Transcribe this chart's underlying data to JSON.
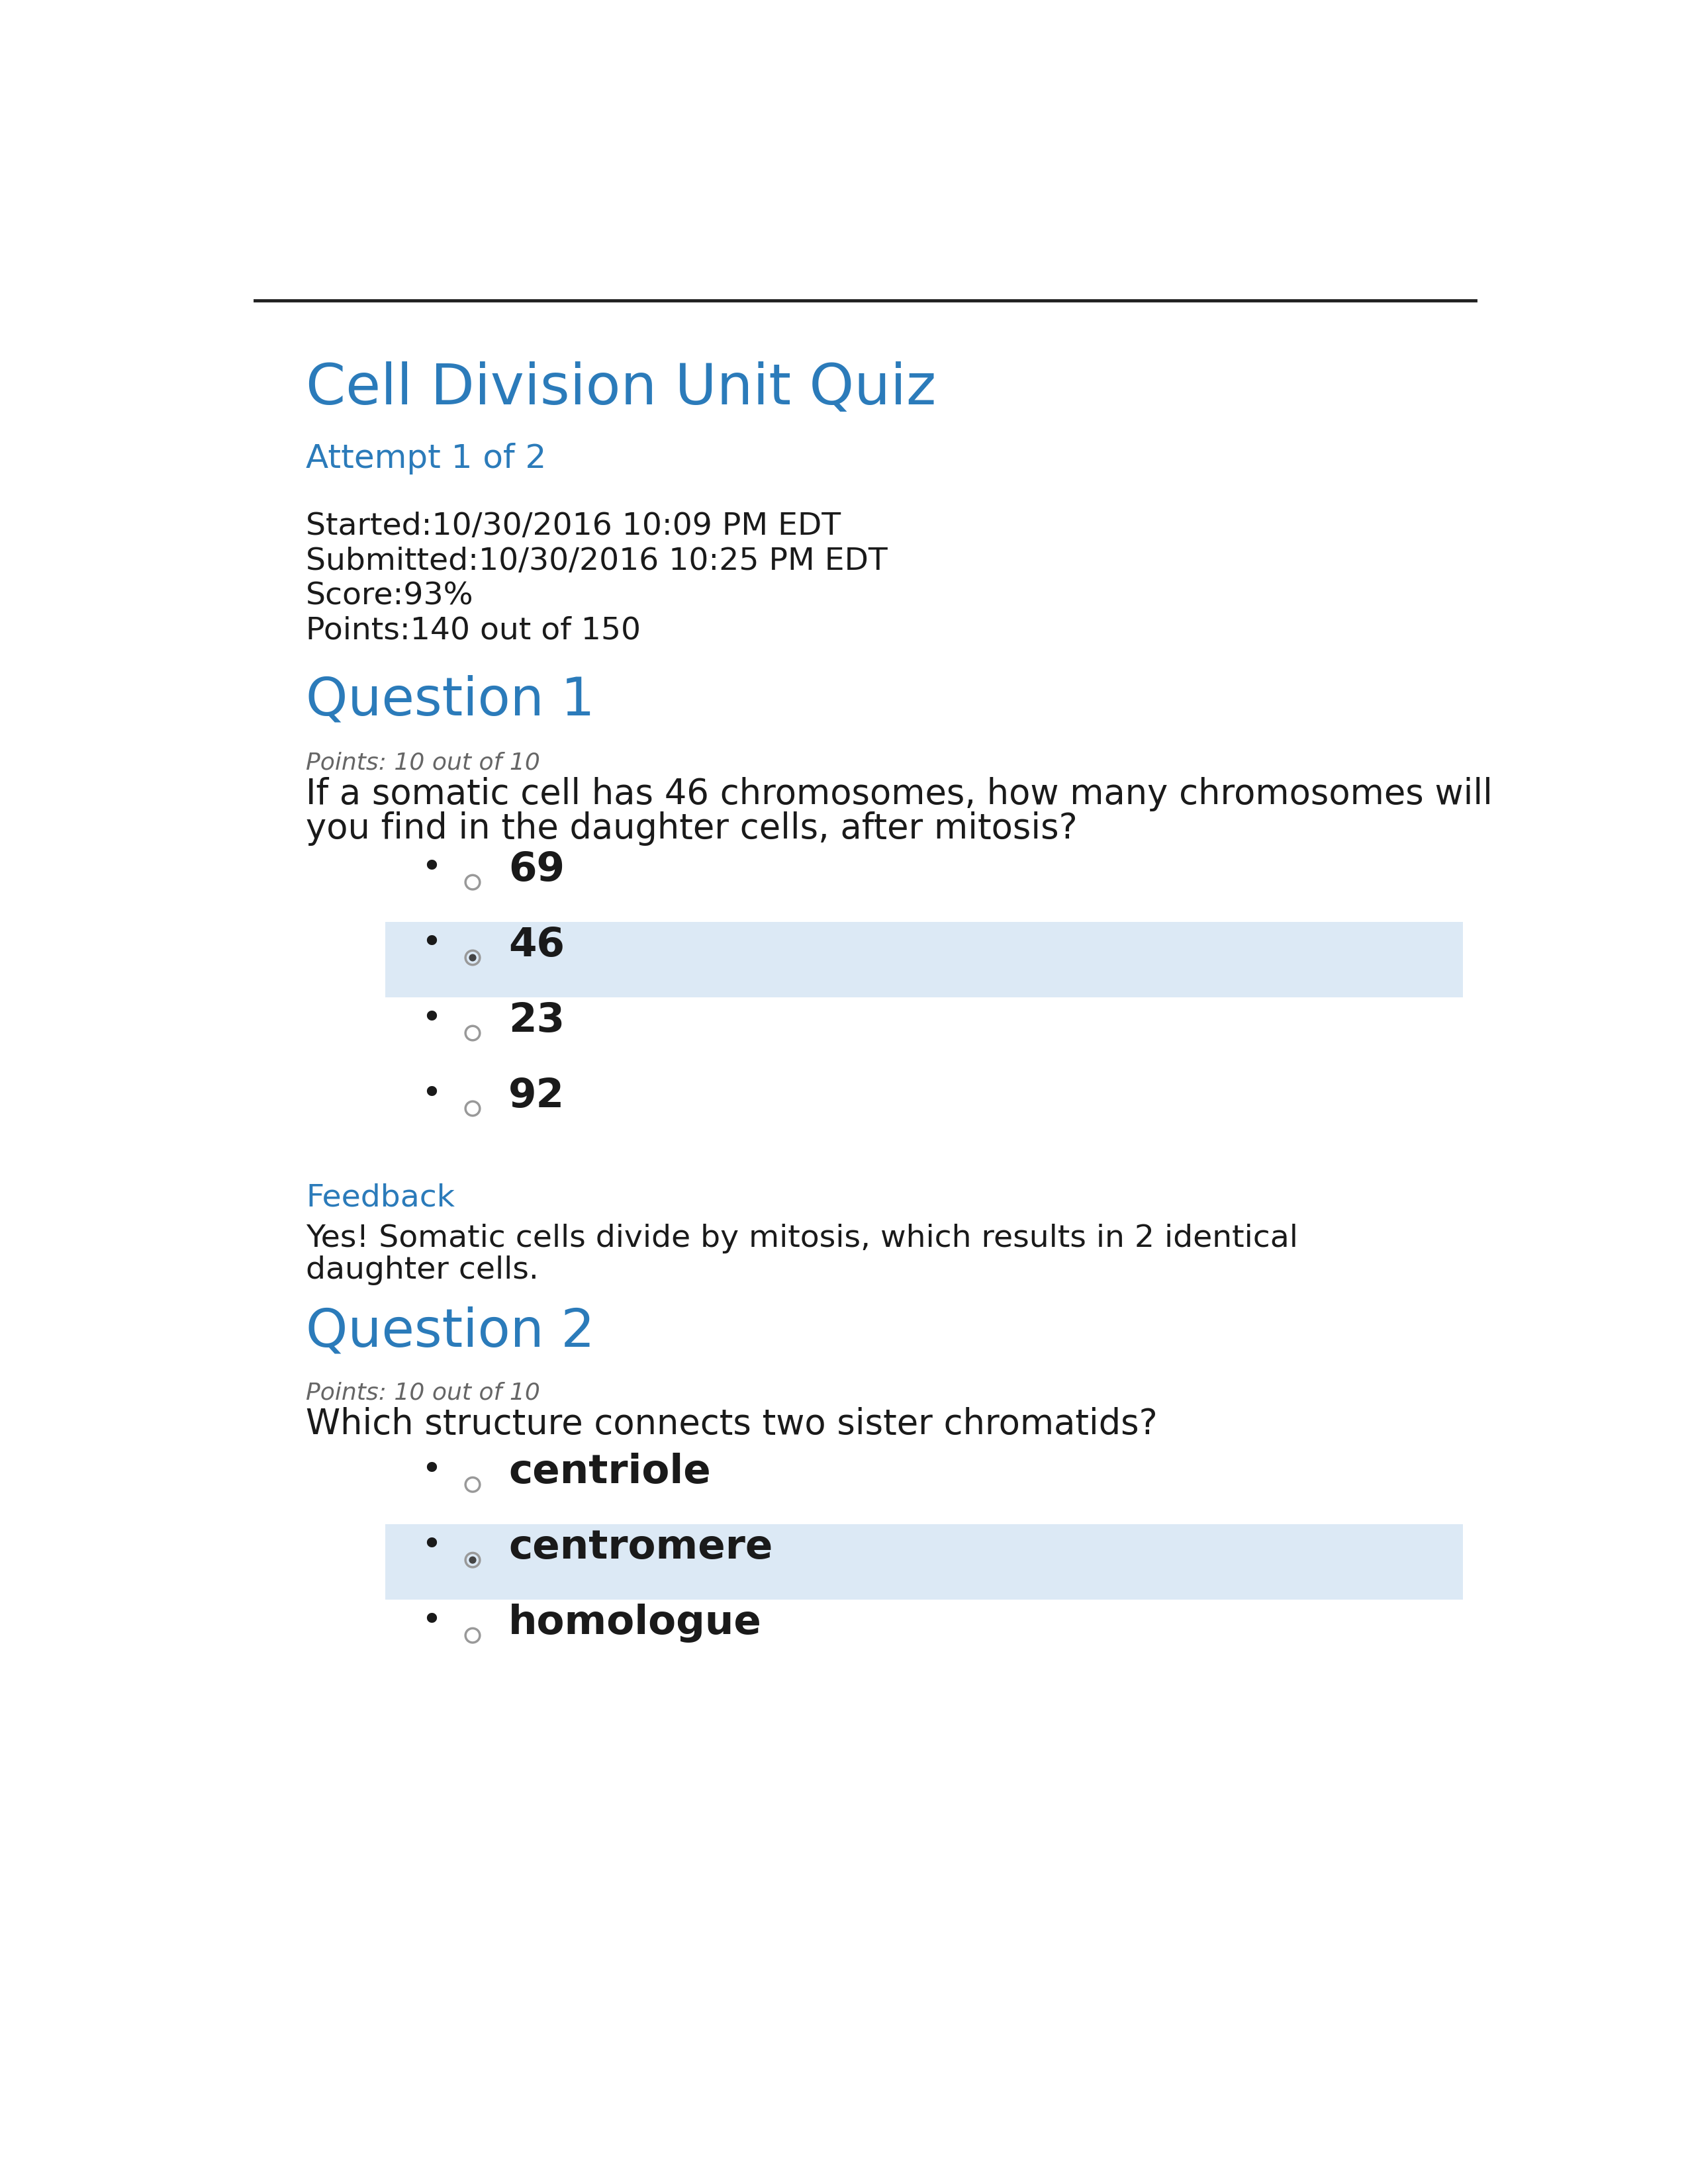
{
  "title": "Cell Division Unit Quiz",
  "attempt": "Attempt 1 of 2",
  "started": "Started:10/30/2016 10:09 PM EDT",
  "submitted": "Submitted:10/30/2016 10:25 PM EDT",
  "score": "Score:93%",
  "points_total": "Points:140 out of 150",
  "blue_color": "#2b7bba",
  "black_color": "#1a1a1a",
  "highlight_color": "#dce9f5",
  "q1_header": "Question 1",
  "q1_points": "Points: 10 out of 10",
  "q1_question_line1": "If a somatic cell has 46 chromosomes, how many chromosomes will",
  "q1_question_line2": "you find in the daughter cells, after mitosis?",
  "q1_options": [
    "69",
    "46",
    "23",
    "92"
  ],
  "q1_correct": 1,
  "feedback_label": "Feedback",
  "feedback_text_line1": "Yes! Somatic cells divide by mitosis, which results in 2 identical",
  "feedback_text_line2": "daughter cells.",
  "q2_header": "Question 2",
  "q2_points": "Points: 10 out of 10",
  "q2_question": "Which structure connects two sister chromatids?",
  "q2_options": [
    "centriole",
    "centromere",
    "homologue"
  ],
  "q2_correct": 1,
  "bg_color": "#ffffff",
  "radio_unsel_color": "#999999",
  "radio_sel_color": "#444444",
  "meta_text_color": "#1a1a1a",
  "points_label_color": "#666666"
}
